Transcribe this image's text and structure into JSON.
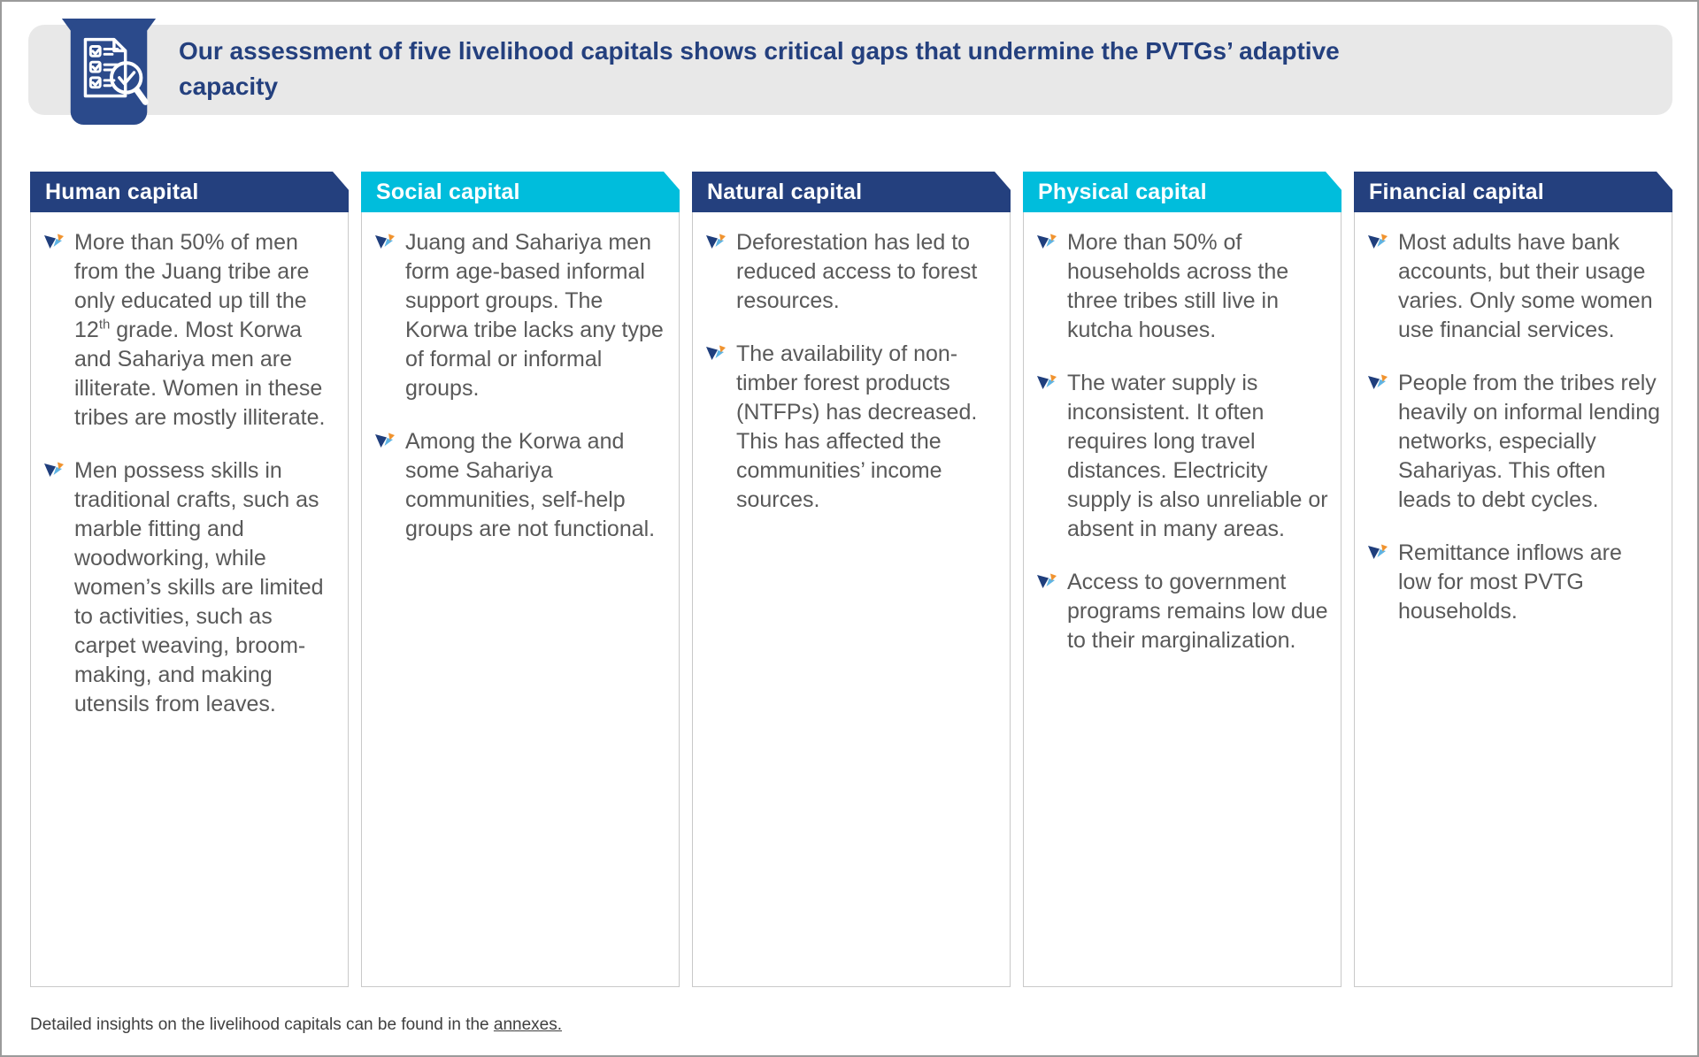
{
  "banner": {
    "title": "Our assessment of five livelihood capitals shows critical gaps that undermine the PVTGs’ adaptive capacity",
    "icon": "checklist-magnifier-icon"
  },
  "columns": [
    {
      "label": "Human capital",
      "theme": "navy",
      "bullets": [
        "More than 50% of men from the Juang tribe are only educated up till the 12^th grade. Most Korwa and Sahariya men are illiterate. Women in these tribes are mostly illiterate.",
        "Men possess skills in traditional crafts, such as marble fitting and woodworking, while women’s skills are limited to activities, such as carpet weaving, broom-making, and making utensils from leaves."
      ]
    },
    {
      "label": "Social capital",
      "theme": "cyan",
      "bullets": [
        "Juang and Sahariya men form age-based informal support groups. The Korwa tribe lacks any type of formal or informal groups.",
        "Among the Korwa and some Sahariya communities, self-help groups are not functional."
      ]
    },
    {
      "label": "Natural capital",
      "theme": "navy",
      "bullets": [
        "Deforestation has led to reduced access to forest resources.",
        "The availability of non-timber forest products (NTFPs) has decreased. This has affected the communities’ income sources."
      ]
    },
    {
      "label": "Physical capital",
      "theme": "cyan",
      "bullets": [
        "More than 50% of households across the three tribes still live in kutcha houses.",
        "The water supply is inconsistent. It often requires long travel distances. Electricity supply is also unreliable or absent in many areas.",
        "Access to government programs remains low due to their marginalization."
      ]
    },
    {
      "label": "Financial capital",
      "theme": "navy",
      "bullets": [
        "Most adults have bank accounts, but their usage varies. Only some women use financial services.",
        "People from the tribes rely heavily on informal lending networks, especially Sahariyas. This often leads to debt cycles.",
        "Remittance inflows are low for most PVTG households."
      ]
    }
  ],
  "footer": {
    "prefix": "Detailed insights on the livelihood capitals can be found in the ",
    "link_text": "annexes."
  },
  "colors": {
    "navy": "#24407E",
    "cyan": "#00BDDC",
    "badge_navy": "#2B4A8B",
    "banner_bg": "#E8E8E8",
    "title_text": "#24407E",
    "body_text": "#595959",
    "footer_text": "#3F3F3F",
    "col_border": "#C9C9C9",
    "bullet_navy": "#1F3E7C",
    "bullet_blue": "#5FB4E4",
    "bullet_orange": "#F0932F"
  }
}
